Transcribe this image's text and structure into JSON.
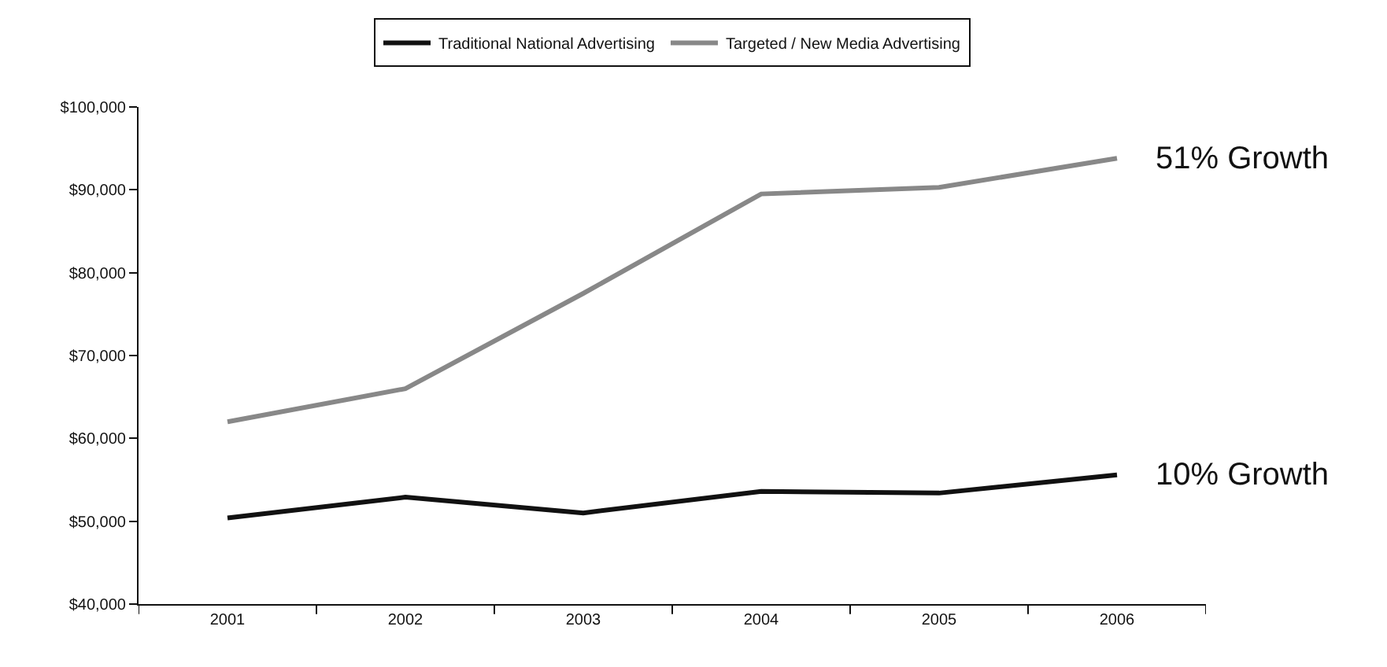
{
  "chart_data": {
    "type": "line",
    "categories": [
      "2001",
      "2002",
      "2003",
      "2004",
      "2005",
      "2006"
    ],
    "series": [
      {
        "name": "Traditional National Advertising",
        "color": "#111111",
        "values": [
          50400,
          52900,
          51000,
          53600,
          53400,
          55600
        ]
      },
      {
        "name": "Targeted / New Media Advertising",
        "color": "#888888",
        "values": [
          62000,
          66000,
          77500,
          89500,
          90300,
          93800
        ]
      }
    ],
    "ylim": [
      40000,
      100000
    ],
    "yticks": [
      {
        "value": 40000,
        "label": "$40,000"
      },
      {
        "value": 50000,
        "label": "$50,000"
      },
      {
        "value": 60000,
        "label": "$60,000"
      },
      {
        "value": 70000,
        "label": "$70,000"
      },
      {
        "value": 80000,
        "label": "$80,000"
      },
      {
        "value": 90000,
        "label": "$90,000"
      },
      {
        "value": 100000,
        "label": "$100,000"
      }
    ],
    "annotations": [
      {
        "text": "51% Growth",
        "x": "2006",
        "y": 93800
      },
      {
        "text": "10% Growth",
        "x": "2006",
        "y": 55600
      }
    ],
    "grid": false,
    "legend": "top",
    "marker": "none",
    "line_style": "solid"
  }
}
